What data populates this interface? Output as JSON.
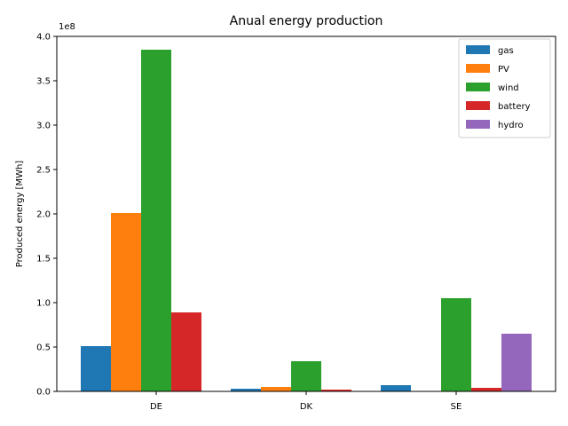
{
  "chart_data": {
    "type": "bar",
    "title": "Anual energy production",
    "xlabel": "",
    "ylabel": "Produced energy [MWh]",
    "y_offset_label": "1e8",
    "y_scale": 100000000,
    "ylim": [
      0,
      400000000
    ],
    "yticks": [
      0,
      50000000,
      100000000,
      150000000,
      200000000,
      250000000,
      300000000,
      350000000,
      400000000
    ],
    "ytick_labels": [
      "0.0",
      "0.5",
      "1.0",
      "1.5",
      "2.0",
      "2.5",
      "3.0",
      "3.5",
      "4.0"
    ],
    "categories": [
      "DE",
      "DK",
      "SE"
    ],
    "series": [
      {
        "name": "gas",
        "color": "#1f77b4",
        "values": [
          51000000,
          3000000,
          7000000
        ]
      },
      {
        "name": "PV",
        "color": "#ff7f0e",
        "values": [
          201000000,
          5000000,
          0
        ]
      },
      {
        "name": "wind",
        "color": "#2ca02c",
        "values": [
          385000000,
          34000000,
          105000000
        ]
      },
      {
        "name": "battery",
        "color": "#d62728",
        "values": [
          89000000,
          2000000,
          4000000
        ]
      },
      {
        "name": "hydro",
        "color": "#9467bd",
        "values": [
          0,
          0,
          65000000
        ]
      }
    ],
    "legend_position": "top-right",
    "grid": false
  }
}
